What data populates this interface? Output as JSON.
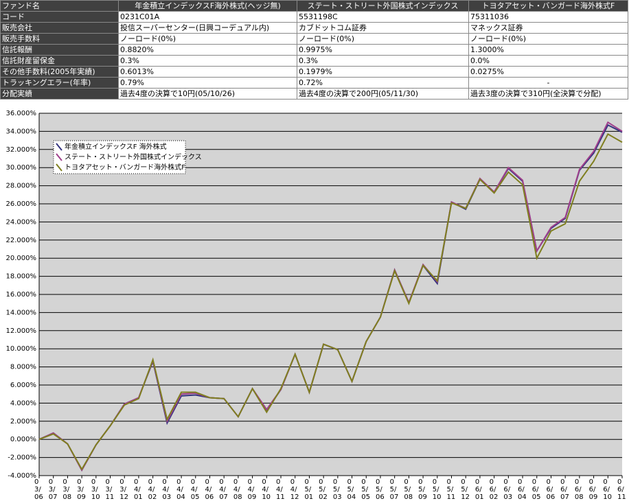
{
  "table": {
    "rows": [
      [
        "ファンド名",
        "年金積立インデックスF海外株式(ヘッジ無)",
        "ステート・ストリート外国株式インデックス",
        "トヨタアセット・バンガード海外株式F"
      ],
      [
        "コード",
        "0231C01A",
        "5531198C",
        "75311036"
      ],
      [
        "販売会社",
        "投信スーパーセンター(日興コーデュアル内)",
        "カブドットコム証券",
        "マネックス証券"
      ],
      [
        "販売手数料",
        "ノーロード(0%)",
        "ノーロード(0%)",
        "ノーロード(0%)"
      ],
      [
        "信託報酬",
        "0.8820%",
        "0.9975%",
        "1.3000%"
      ],
      [
        "信託財産留保金",
        "0.3%",
        "0.3%",
        "0.0%"
      ],
      [
        "その他手数料(2005年実績)",
        "0.6013%",
        "0.1979%",
        "0.0275%"
      ],
      [
        "トラッキングエラー(年率)",
        "0.79%",
        "0.72%",
        "-"
      ],
      [
        "分配実績",
        "過去4度の決算で10円(05/10/26)",
        "過去4度の決算で200円(05/11/30)",
        "過去3度の決算で310円(全決算で分配)"
      ]
    ]
  },
  "chart_data": {
    "type": "line",
    "categories": [
      "03/06",
      "03/07",
      "03/08",
      "03/09",
      "03/10",
      "03/11",
      "03/12",
      "04/01",
      "04/02",
      "04/03",
      "04/04",
      "04/05",
      "04/06",
      "04/07",
      "04/08",
      "04/09",
      "04/10",
      "04/11",
      "04/12",
      "05/01",
      "05/02",
      "05/03",
      "05/04",
      "05/05",
      "05/06",
      "05/07",
      "05/08",
      "05/09",
      "05/10",
      "05/11",
      "05/12",
      "06/01",
      "06/02",
      "06/03",
      "06/04",
      "06/05",
      "06/06",
      "06/07",
      "06/08",
      "06/09",
      "06/10",
      "06/11"
    ],
    "series": [
      {
        "name": "年金積立インデックスF 海外株式",
        "color": "#33337f",
        "values": [
          0,
          0.7,
          -0.5,
          -3.4,
          -0.6,
          1.5,
          3.9,
          4.6,
          8.6,
          1.8,
          4.8,
          4.9,
          4.6,
          4.5,
          2.5,
          5.6,
          3.2,
          5.5,
          9.4,
          5.2,
          10.5,
          9.9,
          6.4,
          10.8,
          13.5,
          18.7,
          15.1,
          19.2,
          17.2,
          26.2,
          25.4,
          28.7,
          27.3,
          29.9,
          28.5,
          20.8,
          23.3,
          24.4,
          29.7,
          31.6,
          34.7,
          33.9
        ]
      },
      {
        "name": "ステート・ストリート外国株式インデックス",
        "color": "#a0408c",
        "values": [
          0,
          0.7,
          -0.5,
          -3.4,
          -0.6,
          1.5,
          3.9,
          4.6,
          8.7,
          2.0,
          5.0,
          5.1,
          4.6,
          4.5,
          2.5,
          5.6,
          3.3,
          5.5,
          9.4,
          5.2,
          10.5,
          9.9,
          6.4,
          10.8,
          13.5,
          18.7,
          15.1,
          19.3,
          17.4,
          26.2,
          25.5,
          28.8,
          27.3,
          30.0,
          28.6,
          20.8,
          23.4,
          24.5,
          29.8,
          31.8,
          35.0,
          34.0
        ]
      },
      {
        "name": "トヨタアセット・バンガード海外株式F",
        "color": "#7f7f1f",
        "values": [
          0,
          0.6,
          -0.5,
          -3.3,
          -0.6,
          1.5,
          3.8,
          4.5,
          8.8,
          2.2,
          5.2,
          5.2,
          4.6,
          4.5,
          2.5,
          5.6,
          3.0,
          5.6,
          9.4,
          5.2,
          10.5,
          9.9,
          6.4,
          10.8,
          13.5,
          18.6,
          15.0,
          19.2,
          17.5,
          26.1,
          25.5,
          28.7,
          27.2,
          29.5,
          28.1,
          20.0,
          23.0,
          23.8,
          28.5,
          30.7,
          33.7,
          32.8
        ]
      }
    ],
    "ylim": [
      -4,
      36
    ],
    "yticks": [
      {
        "value": -4,
        "label": "-4.000%"
      },
      {
        "value": -2,
        "label": "-2.000%"
      },
      {
        "value": 0,
        "label": "0.000%"
      },
      {
        "value": 2,
        "label": "2.000%"
      },
      {
        "value": 4,
        "label": "4.000%"
      },
      {
        "value": 6,
        "label": "6.000%"
      },
      {
        "value": 8,
        "label": "8.000%"
      },
      {
        "value": 10,
        "label": "10.000%"
      },
      {
        "value": 12,
        "label": "12.000%"
      },
      {
        "value": 14,
        "label": "14.000%"
      },
      {
        "value": 16,
        "label": "16.000%"
      },
      {
        "value": 18,
        "label": "18.000%"
      },
      {
        "value": 20,
        "label": "20.000%"
      },
      {
        "value": 22,
        "label": "22.000%"
      },
      {
        "value": 24,
        "label": "24.000%"
      },
      {
        "value": 26,
        "label": "26.000%"
      },
      {
        "value": 28,
        "label": "28.000%"
      },
      {
        "value": 30,
        "label": "30.000%"
      },
      {
        "value": 32,
        "label": "32.000%"
      },
      {
        "value": 34,
        "label": "34.000%"
      },
      {
        "value": 36,
        "label": "36.000%"
      }
    ],
    "grid": true,
    "legend": "upper left",
    "background": "#d4d4d4"
  }
}
